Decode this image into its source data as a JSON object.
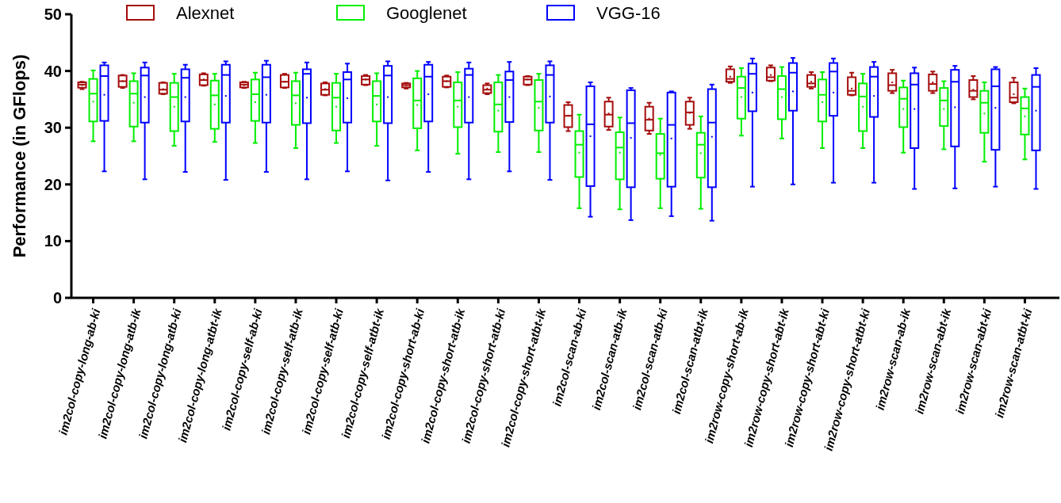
{
  "chart_data": {
    "type": "box",
    "ylabel": "Performance (in GFlops)",
    "ylim": [
      0,
      50
    ],
    "yticks": [
      0,
      10,
      20,
      30,
      40,
      50
    ],
    "grid": false,
    "legend": "top",
    "categories": [
      "im2col-copy-long-ab-ki",
      "im2col-copy-long-atb-ik",
      "im2col-copy-long-atb-ki",
      "im2col-copy-long-atbt-ik",
      "im2col-copy-self-ab-ki",
      "im2col-copy-self-atb-ik",
      "im2col-copy-self-atb-ki",
      "im2col-copy-self-atbt-ik",
      "im2col-copy-short-ab-ki",
      "im2col-copy-short-atb-ik",
      "im2col-copy-short-atb-ki",
      "im2col-copy-short-atbt-ik",
      "im2col-scan-ab-ki",
      "im2col-scan-atb-ik",
      "im2col-scan-atb-ki",
      "im2col-scan-atbt-ik",
      "im2row-copy-short-ab-ik",
      "im2row-copy-short-abt-ik",
      "im2row-copy-short-abt-ki",
      "im2row-copy-short-atbt-ki",
      "im2row-scan-ab-ik",
      "im2row-scan-abt-ik",
      "im2row-scan-abt-ki",
      "im2row-scan-atbt-ki"
    ],
    "series": [
      {
        "name": "Alexnet",
        "color": "#a50d0d",
        "boxes": [
          {
            "low": 36.8,
            "q1": 37.05,
            "median": 37.6,
            "q3": 38.0,
            "high": 38.1,
            "mean": 37.5
          },
          {
            "low": 37.0,
            "q1": 37.2,
            "median": 38.2,
            "q3": 39.2,
            "high": 39.3,
            "mean": 38.2
          },
          {
            "low": 35.9,
            "q1": 36.0,
            "median": 36.7,
            "q3": 37.9,
            "high": 38.0,
            "mean": 36.8
          },
          {
            "low": 37.4,
            "q1": 37.5,
            "median": 38.4,
            "q3": 39.4,
            "high": 39.6,
            "mean": 38.5
          },
          {
            "low": 37.0,
            "q1": 37.1,
            "median": 37.6,
            "q3": 38.0,
            "high": 38.1,
            "mean": 37.5
          },
          {
            "low": 37.0,
            "q1": 37.1,
            "median": 38.1,
            "q3": 39.3,
            "high": 39.5,
            "mean": 38.1
          },
          {
            "low": 35.7,
            "q1": 35.8,
            "median": 36.7,
            "q3": 37.8,
            "high": 38.0,
            "mean": 36.8
          },
          {
            "low": 37.5,
            "q1": 37.6,
            "median": 38.5,
            "q3": 39.1,
            "high": 39.3,
            "mean": 38.5
          },
          {
            "low": 36.9,
            "q1": 37.1,
            "median": 37.5,
            "q3": 37.8,
            "high": 37.9,
            "mean": 37.5
          },
          {
            "low": 37.1,
            "q1": 37.2,
            "median": 38.2,
            "q3": 39.0,
            "high": 39.2,
            "mean": 38.2
          },
          {
            "low": 35.9,
            "q1": 36.1,
            "median": 36.7,
            "q3": 37.5,
            "high": 37.8,
            "mean": 36.9
          },
          {
            "low": 37.5,
            "q1": 37.6,
            "median": 38.5,
            "q3": 39.0,
            "high": 39.1,
            "mean": 38.5
          },
          {
            "low": 29.4,
            "q1": 30.1,
            "median": 32.1,
            "q3": 34.0,
            "high": 34.5,
            "mean": 32.1
          },
          {
            "low": 29.6,
            "q1": 30.2,
            "median": 32.3,
            "q3": 34.6,
            "high": 35.3,
            "mean": 32.5
          },
          {
            "low": 28.9,
            "q1": 29.5,
            "median": 31.4,
            "q3": 33.7,
            "high": 34.4,
            "mean": 31.6
          },
          {
            "low": 29.8,
            "q1": 30.5,
            "median": 32.7,
            "q3": 34.6,
            "high": 35.3,
            "mean": 32.6
          },
          {
            "low": 37.9,
            "q1": 38.1,
            "median": 38.6,
            "q3": 40.3,
            "high": 40.8,
            "mean": 39.0
          },
          {
            "low": 38.2,
            "q1": 38.3,
            "median": 38.9,
            "q3": 40.6,
            "high": 41.0,
            "mean": 39.3
          },
          {
            "low": 36.9,
            "q1": 37.2,
            "median": 37.8,
            "q3": 39.3,
            "high": 39.8,
            "mean": 38.1
          },
          {
            "low": 35.7,
            "q1": 35.8,
            "median": 36.5,
            "q3": 38.9,
            "high": 39.7,
            "mean": 36.9
          },
          {
            "low": 36.1,
            "q1": 36.5,
            "median": 37.5,
            "q3": 39.6,
            "high": 40.2,
            "mean": 38.0
          },
          {
            "low": 36.1,
            "q1": 36.5,
            "median": 37.7,
            "q3": 39.4,
            "high": 39.9,
            "mean": 38.0
          },
          {
            "low": 35.0,
            "q1": 35.4,
            "median": 36.5,
            "q3": 38.4,
            "high": 39.1,
            "mean": 36.7
          },
          {
            "low": 34.3,
            "q1": 34.5,
            "median": 35.3,
            "q3": 38.0,
            "high": 38.8,
            "mean": 35.9
          }
        ]
      },
      {
        "name": "Googlenet",
        "color": "#00ee00",
        "boxes": [
          {
            "low": 27.6,
            "q1": 31.1,
            "median": 36.0,
            "q3": 38.6,
            "high": 40.1,
            "mean": 34.6
          },
          {
            "low": 27.6,
            "q1": 30.2,
            "median": 36.0,
            "q3": 38.2,
            "high": 39.6,
            "mean": 34.4
          },
          {
            "low": 26.8,
            "q1": 29.4,
            "median": 35.4,
            "q3": 37.9,
            "high": 39.5,
            "mean": 33.7
          },
          {
            "low": 27.5,
            "q1": 29.8,
            "median": 35.7,
            "q3": 38.3,
            "high": 39.5,
            "mean": 34.1
          },
          {
            "low": 27.3,
            "q1": 31.2,
            "median": 35.9,
            "q3": 38.5,
            "high": 39.7,
            "mean": 34.5
          },
          {
            "low": 26.4,
            "q1": 30.5,
            "median": 35.7,
            "q3": 38.2,
            "high": 39.7,
            "mean": 34.3
          },
          {
            "low": 27.3,
            "q1": 29.5,
            "median": 35.3,
            "q3": 37.9,
            "high": 39.5,
            "mean": 33.7
          },
          {
            "low": 26.8,
            "q1": 31.1,
            "median": 35.6,
            "q3": 38.2,
            "high": 39.6,
            "mean": 34.1
          },
          {
            "low": 26.0,
            "q1": 29.9,
            "median": 34.8,
            "q3": 38.7,
            "high": 40.0,
            "mean": 34.0
          },
          {
            "low": 25.4,
            "q1": 30.1,
            "median": 34.8,
            "q3": 38.0,
            "high": 39.8,
            "mean": 33.7
          },
          {
            "low": 25.7,
            "q1": 29.3,
            "median": 34.1,
            "q3": 38.0,
            "high": 39.3,
            "mean": 33.0
          },
          {
            "low": 25.7,
            "q1": 29.5,
            "median": 34.6,
            "q3": 38.4,
            "high": 39.5,
            "mean": 33.5
          },
          {
            "low": 15.8,
            "q1": 21.3,
            "median": 27.0,
            "q3": 29.4,
            "high": 32.3,
            "mean": 25.6
          },
          {
            "low": 15.6,
            "q1": 20.9,
            "median": 26.5,
            "q3": 29.2,
            "high": 31.8,
            "mean": 25.6
          },
          {
            "low": 15.8,
            "q1": 21.0,
            "median": 25.5,
            "q3": 28.9,
            "high": 31.6,
            "mean": 25.2
          },
          {
            "low": 15.7,
            "q1": 21.2,
            "median": 27.0,
            "q3": 29.1,
            "high": 32.0,
            "mean": 25.5
          },
          {
            "low": 28.6,
            "q1": 31.6,
            "median": 37.0,
            "q3": 39.0,
            "high": 40.5,
            "mean": 35.4
          },
          {
            "low": 28.1,
            "q1": 31.5,
            "median": 36.8,
            "q3": 39.1,
            "high": 40.7,
            "mean": 35.4
          },
          {
            "low": 26.4,
            "q1": 31.1,
            "median": 35.8,
            "q3": 38.5,
            "high": 39.8,
            "mean": 34.5
          },
          {
            "low": 26.4,
            "q1": 29.4,
            "median": 35.5,
            "q3": 37.8,
            "high": 39.5,
            "mean": 33.7
          },
          {
            "low": 25.6,
            "q1": 30.1,
            "median": 35.1,
            "q3": 37.1,
            "high": 38.3,
            "mean": 33.3
          },
          {
            "low": 26.2,
            "q1": 30.3,
            "median": 34.8,
            "q3": 37.0,
            "high": 38.2,
            "mean": 33.3
          },
          {
            "low": 24.0,
            "q1": 29.1,
            "median": 34.4,
            "q3": 36.5,
            "high": 38.0,
            "mean": 32.5
          },
          {
            "low": 24.4,
            "q1": 28.8,
            "median": 33.4,
            "q3": 35.4,
            "high": 36.9,
            "mean": 32.0
          }
        ]
      },
      {
        "name": "VGG-16",
        "color": "#0000ff",
        "boxes": [
          {
            "low": 22.3,
            "q1": 31.2,
            "median": 39.1,
            "q3": 41.0,
            "high": 41.5,
            "mean": 35.8
          },
          {
            "low": 20.9,
            "q1": 30.9,
            "median": 39.2,
            "q3": 40.6,
            "high": 41.5,
            "mean": 35.4
          },
          {
            "low": 22.2,
            "q1": 31.1,
            "median": 38.8,
            "q3": 40.3,
            "high": 41.1,
            "mean": 35.4
          },
          {
            "low": 20.8,
            "q1": 30.9,
            "median": 39.3,
            "q3": 41.1,
            "high": 41.7,
            "mean": 35.6
          },
          {
            "low": 22.2,
            "q1": 30.9,
            "median": 38.9,
            "q3": 41.1,
            "high": 41.8,
            "mean": 35.8
          },
          {
            "low": 20.9,
            "q1": 30.8,
            "median": 39.5,
            "q3": 40.3,
            "high": 41.5,
            "mean": 35.3
          },
          {
            "low": 22.3,
            "q1": 30.9,
            "median": 38.5,
            "q3": 39.8,
            "high": 41.3,
            "mean": 35.2
          },
          {
            "low": 20.7,
            "q1": 30.8,
            "median": 39.2,
            "q3": 40.9,
            "high": 41.7,
            "mean": 35.4
          },
          {
            "low": 22.2,
            "q1": 31.1,
            "median": 39.0,
            "q3": 41.1,
            "high": 41.6,
            "mean": 35.9
          },
          {
            "low": 20.9,
            "q1": 30.9,
            "median": 39.3,
            "q3": 40.4,
            "high": 41.5,
            "mean": 35.4
          },
          {
            "low": 22.3,
            "q1": 31.0,
            "median": 38.4,
            "q3": 39.9,
            "high": 41.6,
            "mean": 35.4
          },
          {
            "low": 20.8,
            "q1": 30.9,
            "median": 39.3,
            "q3": 41.0,
            "high": 41.7,
            "mean": 35.5
          },
          {
            "low": 14.3,
            "q1": 19.7,
            "median": 30.6,
            "q3": 37.3,
            "high": 38.0,
            "mean": 28.5
          },
          {
            "low": 13.7,
            "q1": 19.5,
            "median": 30.8,
            "q3": 36.6,
            "high": 37.0,
            "mean": 28.2
          },
          {
            "low": 14.4,
            "q1": 19.6,
            "median": 30.5,
            "q3": 36.2,
            "high": 36.4,
            "mean": 28.1
          },
          {
            "low": 13.6,
            "q1": 19.5,
            "median": 30.9,
            "q3": 36.8,
            "high": 37.6,
            "mean": 28.4
          },
          {
            "low": 19.6,
            "q1": 32.9,
            "median": 39.5,
            "q3": 41.3,
            "high": 42.2,
            "mean": 36.2
          },
          {
            "low": 20.0,
            "q1": 33.0,
            "median": 39.7,
            "q3": 41.4,
            "high": 42.3,
            "mean": 36.4
          },
          {
            "low": 20.3,
            "q1": 32.1,
            "median": 39.9,
            "q3": 41.4,
            "high": 42.2,
            "mean": 36.2
          },
          {
            "low": 20.3,
            "q1": 31.9,
            "median": 39.0,
            "q3": 40.7,
            "high": 41.6,
            "mean": 35.6
          },
          {
            "low": 19.2,
            "q1": 26.4,
            "median": 37.6,
            "q3": 39.6,
            "high": 40.6,
            "mean": 33.3
          },
          {
            "low": 19.3,
            "q1": 26.7,
            "median": 38.1,
            "q3": 40.2,
            "high": 40.9,
            "mean": 33.6
          },
          {
            "low": 19.6,
            "q1": 26.1,
            "median": 37.3,
            "q3": 40.3,
            "high": 40.7,
            "mean": 33.5
          },
          {
            "low": 19.2,
            "q1": 26.0,
            "median": 37.2,
            "q3": 39.3,
            "high": 40.5,
            "mean": 33.0
          }
        ]
      }
    ]
  }
}
